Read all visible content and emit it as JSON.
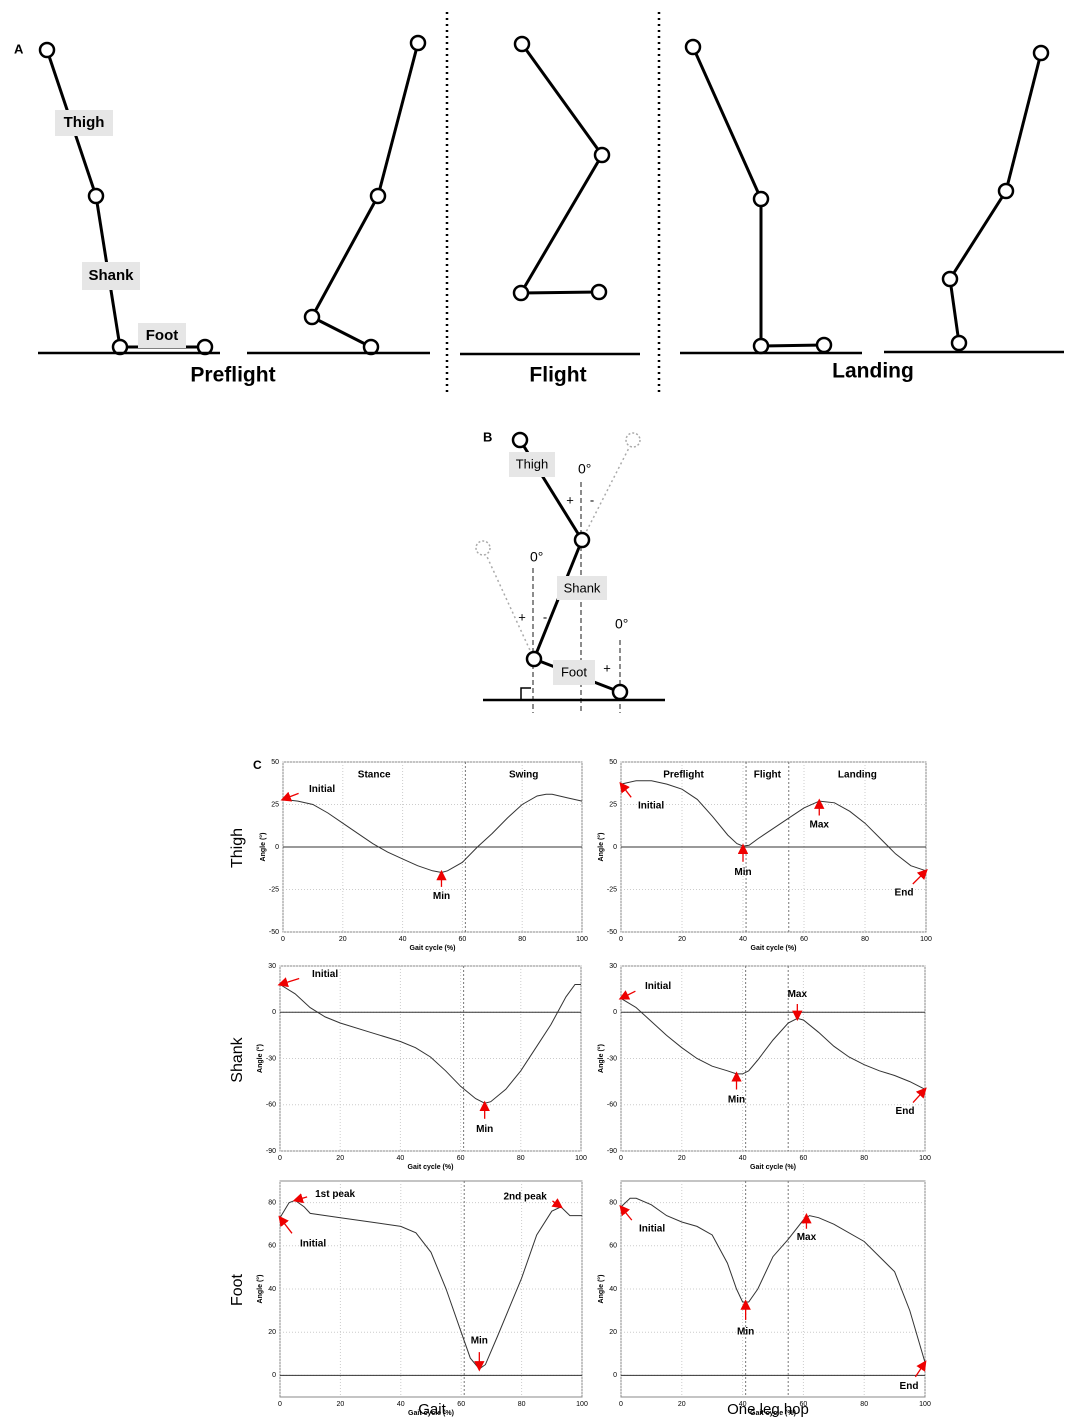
{
  "panel_a": {
    "label": "A",
    "segments": [
      "Thigh",
      "Shank",
      "Foot"
    ],
    "phases": [
      "Preflight",
      "Flight",
      "Landing"
    ]
  },
  "panel_b": {
    "label": "B",
    "segments": [
      "Thigh",
      "Shank",
      "Foot"
    ],
    "zero_labels": [
      "0°",
      "0°",
      "0°"
    ],
    "signs": [
      "+",
      "-",
      "+",
      "-",
      "+"
    ]
  },
  "panel_c": {
    "label": "C",
    "row_labels": [
      "Thigh",
      "Shank",
      "Foot"
    ],
    "column_labels": [
      "Gait",
      "One leg hop"
    ]
  },
  "chart_data": [
    {
      "type": "line",
      "x_label": "Gait cycle (%)",
      "y_label": "Angle (°)",
      "xlim": [
        0,
        100
      ],
      "xticks": [
        0,
        20,
        40,
        60,
        80,
        100
      ],
      "ylim": [
        -50,
        50
      ],
      "yticks": [
        -50,
        -25,
        0,
        25,
        50
      ],
      "grid": true,
      "color": "#333333",
      "phases": [
        "Stance",
        "Swing"
      ],
      "phase_boundaries": [
        61
      ],
      "x": [
        0,
        5,
        10,
        15,
        20,
        25,
        30,
        35,
        40,
        45,
        50,
        53,
        55,
        60,
        65,
        70,
        75,
        80,
        85,
        88,
        90,
        95,
        100
      ],
      "values": [
        28,
        27,
        25,
        20,
        14,
        8,
        2,
        -3,
        -7,
        -11,
        -14,
        -15,
        -14,
        -9,
        0,
        8,
        17,
        25,
        30,
        31,
        31,
        29,
        27
      ],
      "annotations": [
        {
          "text": "Initial",
          "x": 0,
          "y": 28
        },
        {
          "text": "Min",
          "x": 53,
          "y": -15
        }
      ]
    },
    {
      "type": "line",
      "x_label": "Gait cycle (%)",
      "y_label": "Angle (°)",
      "xlim": [
        0,
        100
      ],
      "xticks": [
        0,
        20,
        40,
        60,
        80,
        100
      ],
      "ylim": [
        -50,
        50
      ],
      "yticks": [
        -50,
        -25,
        0,
        25,
        50
      ],
      "grid": true,
      "color": "#333333",
      "phases": [
        "Preflight",
        "Flight",
        "Landing"
      ],
      "phase_boundaries": [
        41,
        55
      ],
      "x": [
        0,
        5,
        10,
        15,
        20,
        25,
        30,
        35,
        38,
        40,
        42,
        45,
        50,
        55,
        60,
        65,
        70,
        75,
        80,
        85,
        90,
        95,
        100
      ],
      "values": [
        37,
        39,
        39,
        37,
        34,
        28,
        18,
        7,
        2,
        0.5,
        1,
        5,
        11,
        17,
        23,
        27,
        26,
        21,
        14,
        5,
        -4,
        -11,
        -14
      ],
      "annotations": [
        {
          "text": "Initial",
          "x": 0,
          "y": 37
        },
        {
          "text": "Min",
          "x": 40,
          "y": 0.5
        },
        {
          "text": "Max",
          "x": 65,
          "y": 27
        },
        {
          "text": "End",
          "x": 100,
          "y": -14
        }
      ]
    },
    {
      "type": "line",
      "x_label": "Gait cycle (%)",
      "y_label": "Angle (°)",
      "xlim": [
        0,
        100
      ],
      "xticks": [
        0,
        20,
        40,
        60,
        80,
        100
      ],
      "ylim": [
        -90,
        30
      ],
      "yticks": [
        -90,
        -60,
        -30,
        0,
        30
      ],
      "grid": true,
      "color": "#333333",
      "phase_boundaries": [
        61
      ],
      "x": [
        0,
        5,
        10,
        15,
        20,
        30,
        40,
        45,
        50,
        55,
        60,
        65,
        68,
        70,
        75,
        80,
        85,
        90,
        95,
        98,
        100
      ],
      "values": [
        18,
        12,
        3,
        -3,
        -7,
        -13,
        -19,
        -23,
        -29,
        -38,
        -48,
        -56,
        -59,
        -58,
        -50,
        -38,
        -23,
        -8,
        10,
        18,
        18
      ],
      "annotations": [
        {
          "text": "Initial",
          "x": 0,
          "y": 18
        },
        {
          "text": "Min",
          "x": 68,
          "y": -59
        }
      ]
    },
    {
      "type": "line",
      "x_label": "Gait cycle (%)",
      "y_label": "Angle (°)",
      "xlim": [
        0,
        100
      ],
      "xticks": [
        0,
        20,
        40,
        60,
        80,
        100
      ],
      "ylim": [
        -90,
        30
      ],
      "yticks": [
        -90,
        -60,
        -30,
        0,
        30
      ],
      "grid": true,
      "color": "#333333",
      "phase_boundaries": [
        41,
        55
      ],
      "x": [
        0,
        5,
        10,
        15,
        20,
        25,
        30,
        35,
        38,
        40,
        42,
        45,
        50,
        55,
        58,
        60,
        65,
        70,
        75,
        80,
        85,
        90,
        95,
        100
      ],
      "values": [
        9,
        3,
        -6,
        -15,
        -23,
        -30,
        -35,
        -38,
        -40,
        -40,
        -38,
        -31,
        -18,
        -7,
        -4,
        -5,
        -13,
        -22,
        -29,
        -34,
        -38,
        -41,
        -45,
        -50
      ],
      "annotations": [
        {
          "text": "Initial",
          "x": 0,
          "y": 9
        },
        {
          "text": "Min",
          "x": 38,
          "y": -40
        },
        {
          "text": "Max",
          "x": 58,
          "y": -4
        },
        {
          "text": "End",
          "x": 100,
          "y": -50
        }
      ]
    },
    {
      "type": "line",
      "x_label": "Gait cycle (%)",
      "y_label": "Angle (°)",
      "xlim": [
        0,
        100
      ],
      "xticks": [
        0,
        20,
        40,
        60,
        80,
        100
      ],
      "ylim": [
        -10,
        90
      ],
      "yticks": [
        0,
        20,
        40,
        60,
        80
      ],
      "grid": true,
      "color": "#333333",
      "phase_boundaries": [
        61
      ],
      "x": [
        0,
        3,
        5,
        8,
        10,
        20,
        30,
        40,
        45,
        50,
        55,
        60,
        63,
        66,
        68,
        72,
        80,
        85,
        90,
        93,
        96,
        100
      ],
      "values": [
        73,
        80,
        81,
        78,
        75,
        73,
        71,
        69,
        66,
        57,
        40,
        20,
        8,
        3,
        5,
        18,
        45,
        65,
        76,
        78,
        74,
        74
      ],
      "annotations": [
        {
          "text": "Initial",
          "x": 0,
          "y": 73
        },
        {
          "text": "1st peak",
          "x": 5,
          "y": 81
        },
        {
          "text": "2nd peak",
          "x": 93,
          "y": 78
        },
        {
          "text": "Min",
          "x": 66,
          "y": 3
        }
      ]
    },
    {
      "type": "line",
      "x_label": "Gait cycle (%)",
      "y_label": "Angle (°)",
      "xlim": [
        0,
        100
      ],
      "xticks": [
        0,
        20,
        40,
        60,
        80,
        100
      ],
      "ylim": [
        -10,
        90
      ],
      "yticks": [
        0,
        20,
        40,
        60,
        80
      ],
      "grid": true,
      "color": "#333333",
      "phase_boundaries": [
        41,
        55
      ],
      "x": [
        0,
        3,
        5,
        10,
        15,
        20,
        25,
        30,
        35,
        38,
        40,
        42,
        45,
        50,
        55,
        60,
        62,
        65,
        70,
        80,
        90,
        95,
        100
      ],
      "values": [
        78,
        82,
        82,
        79,
        74,
        71,
        69,
        65,
        52,
        40,
        34,
        34,
        40,
        55,
        63,
        72,
        74,
        73,
        70,
        62,
        48,
        30,
        6
      ],
      "annotations": [
        {
          "text": "Initial",
          "x": 0,
          "y": 78
        },
        {
          "text": "Min",
          "x": 41,
          "y": 34
        },
        {
          "text": "Max",
          "x": 61,
          "y": 74
        },
        {
          "text": "End",
          "x": 100,
          "y": 6
        }
      ]
    }
  ]
}
